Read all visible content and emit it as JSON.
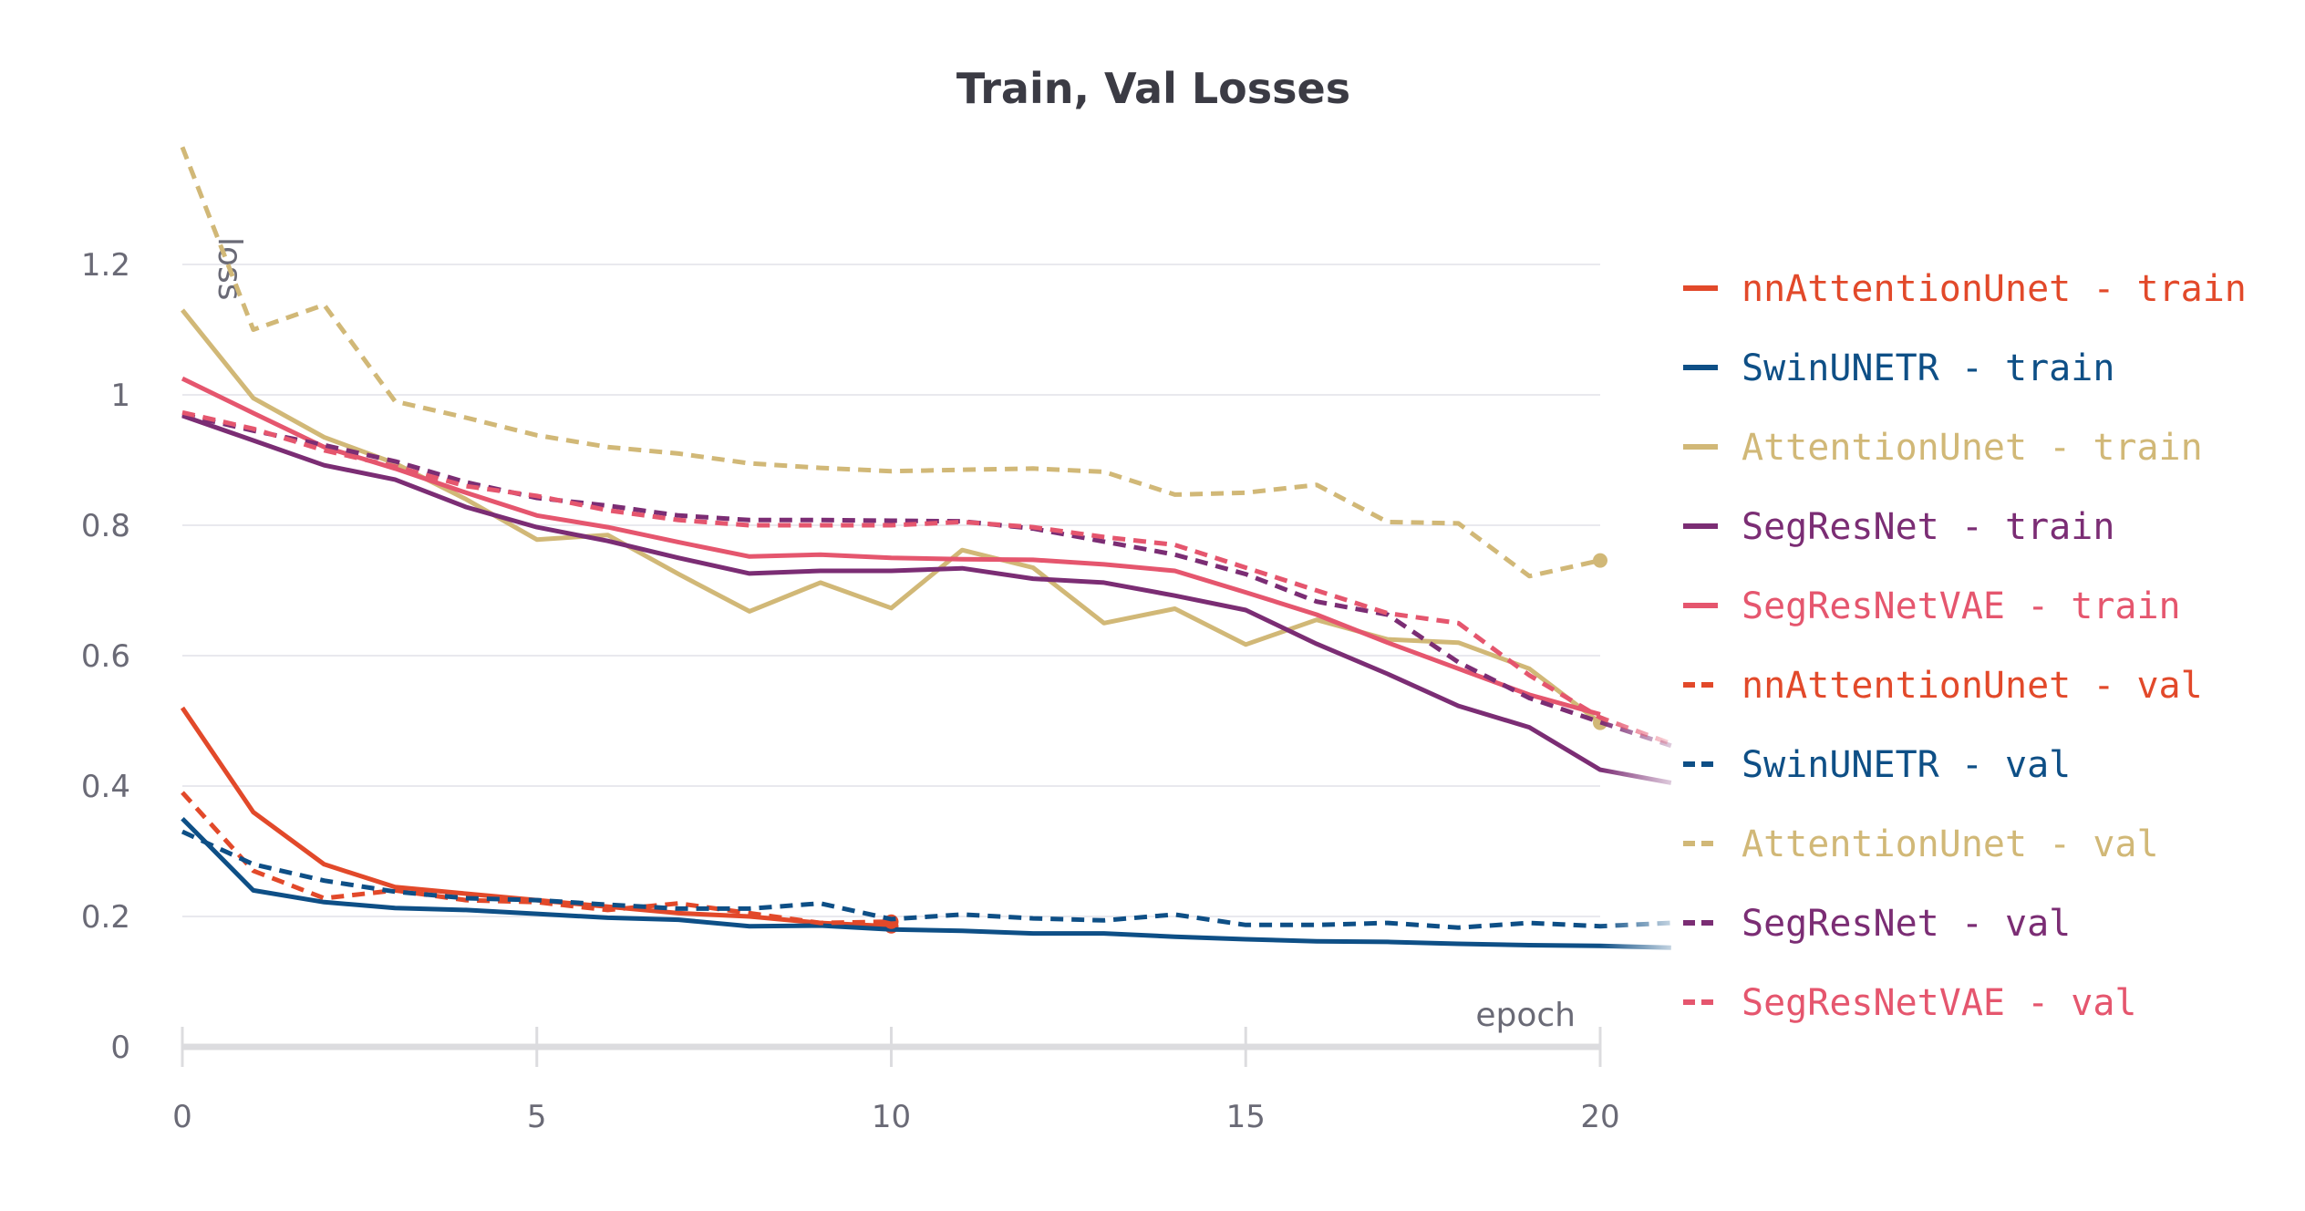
{
  "chart_data": {
    "type": "line",
    "title": "Train, Val Losses",
    "xlabel": "epoch",
    "ylabel": "loss",
    "xlim": [
      0,
      21
    ],
    "ylim": [
      0,
      1.38
    ],
    "xticks": [
      "0",
      "5",
      "10",
      "15",
      "20"
    ],
    "yticks": [
      "0",
      "0.2",
      "0.4",
      "0.6",
      "0.8",
      "1",
      "1.2"
    ],
    "grid": true,
    "legend_position": "right",
    "series": [
      {
        "name": "nnAttentionUnet - train",
        "color": "#e2492a",
        "dash": false,
        "x": [
          0,
          1,
          2,
          3,
          4,
          5,
          6,
          7,
          8,
          9,
          10
        ],
        "values": [
          0.52,
          0.36,
          0.28,
          0.245,
          0.235,
          0.225,
          0.215,
          0.205,
          0.2,
          0.19,
          0.185
        ],
        "end_marker": true
      },
      {
        "name": "SwinUNETR - train",
        "color": "#0e4f86",
        "dash": false,
        "x": [
          0,
          1,
          2,
          3,
          4,
          5,
          6,
          7,
          8,
          9,
          10,
          11,
          12,
          13,
          14,
          15,
          16,
          17,
          18,
          19,
          20,
          21
        ],
        "values": [
          0.35,
          0.24,
          0.222,
          0.213,
          0.21,
          0.204,
          0.198,
          0.195,
          0.185,
          0.186,
          0.18,
          0.178,
          0.174,
          0.174,
          0.169,
          0.165,
          0.162,
          0.161,
          0.158,
          0.156,
          0.155,
          0.152
        ],
        "end_marker": false
      },
      {
        "name": "AttentionUnet - train",
        "color": "#d1b877",
        "dash": false,
        "x": [
          0,
          1,
          2,
          3,
          4,
          5,
          6,
          7,
          8,
          9,
          10,
          11,
          12,
          13,
          14,
          15,
          16,
          17,
          18,
          19,
          20
        ],
        "values": [
          1.13,
          0.995,
          0.935,
          0.895,
          0.84,
          0.778,
          0.785,
          0.725,
          0.668,
          0.712,
          0.673,
          0.762,
          0.735,
          0.65,
          0.672,
          0.617,
          0.655,
          0.625,
          0.62,
          0.58,
          0.497
        ],
        "end_marker": true
      },
      {
        "name": "SegResNet - train",
        "color": "#7b2d74",
        "dash": false,
        "x": [
          0,
          1,
          2,
          3,
          4,
          5,
          6,
          7,
          8,
          9,
          10,
          11,
          12,
          13,
          14,
          15,
          16,
          17,
          18,
          19,
          20,
          21
        ],
        "values": [
          0.968,
          0.93,
          0.892,
          0.87,
          0.828,
          0.797,
          0.776,
          0.75,
          0.726,
          0.73,
          0.73,
          0.734,
          0.718,
          0.712,
          0.692,
          0.67,
          0.618,
          0.572,
          0.523,
          0.49,
          0.425,
          0.405
        ],
        "end_marker": false
      },
      {
        "name": "SegResNetVAE - train",
        "color": "#e5566e",
        "dash": false,
        "x": [
          0,
          1,
          2,
          3,
          4,
          5,
          6,
          7,
          8,
          9,
          10,
          11,
          12,
          13,
          14,
          15,
          16,
          17,
          18,
          19,
          20
        ],
        "values": [
          1.025,
          0.972,
          0.92,
          0.887,
          0.85,
          0.815,
          0.797,
          0.774,
          0.752,
          0.755,
          0.75,
          0.748,
          0.747,
          0.74,
          0.73,
          0.697,
          0.663,
          0.62,
          0.58,
          0.54,
          0.51
        ],
        "end_marker": false
      },
      {
        "name": "nnAttentionUnet - val",
        "color": "#e2492a",
        "dash": true,
        "x": [
          0,
          1,
          2,
          3,
          4,
          5,
          6,
          7,
          8,
          9,
          10
        ],
        "values": [
          0.39,
          0.27,
          0.228,
          0.24,
          0.225,
          0.222,
          0.21,
          0.22,
          0.205,
          0.19,
          0.192
        ],
        "end_marker": true
      },
      {
        "name": "SwinUNETR - val",
        "color": "#0e4f86",
        "dash": true,
        "x": [
          0,
          1,
          2,
          3,
          4,
          5,
          6,
          7,
          8,
          9,
          10,
          11,
          12,
          13,
          14,
          15,
          16,
          17,
          18,
          19,
          20,
          21
        ],
        "values": [
          0.33,
          0.28,
          0.255,
          0.238,
          0.228,
          0.225,
          0.218,
          0.212,
          0.212,
          0.22,
          0.196,
          0.203,
          0.197,
          0.194,
          0.203,
          0.187,
          0.187,
          0.19,
          0.183,
          0.19,
          0.185,
          0.19
        ],
        "end_marker": false
      },
      {
        "name": "AttentionUnet - val",
        "color": "#d1b877",
        "dash": true,
        "x": [
          0,
          1,
          2,
          3,
          4,
          5,
          6,
          7,
          8,
          9,
          10,
          11,
          12,
          13,
          14,
          15,
          16,
          17,
          18,
          19,
          20
        ],
        "values": [
          1.38,
          1.1,
          1.138,
          0.99,
          0.965,
          0.938,
          0.92,
          0.91,
          0.895,
          0.888,
          0.883,
          0.885,
          0.887,
          0.882,
          0.847,
          0.85,
          0.862,
          0.805,
          0.803,
          0.722,
          0.746
        ],
        "end_marker": true
      },
      {
        "name": "SegResNet - val",
        "color": "#7b2d74",
        "dash": true,
        "x": [
          0,
          1,
          2,
          3,
          4,
          5,
          6,
          7,
          8,
          9,
          10,
          11,
          12,
          13,
          14,
          15,
          16,
          17,
          18,
          19,
          20,
          21
        ],
        "values": [
          0.97,
          0.945,
          0.923,
          0.898,
          0.866,
          0.842,
          0.83,
          0.815,
          0.808,
          0.808,
          0.807,
          0.806,
          0.795,
          0.775,
          0.755,
          0.725,
          0.683,
          0.663,
          0.59,
          0.535,
          0.498,
          0.462
        ],
        "end_marker": false
      },
      {
        "name": "SegResNetVAE - val",
        "color": "#e5566e",
        "dash": true,
        "x": [
          0,
          1,
          2,
          3,
          4,
          5,
          6,
          7,
          8,
          9,
          10,
          11,
          12,
          13,
          14,
          15,
          16,
          17,
          18,
          19,
          20,
          21
        ],
        "values": [
          0.973,
          0.948,
          0.915,
          0.89,
          0.86,
          0.845,
          0.823,
          0.808,
          0.8,
          0.8,
          0.8,
          0.805,
          0.797,
          0.782,
          0.77,
          0.735,
          0.7,
          0.665,
          0.65,
          0.57,
          0.505,
          0.465
        ],
        "end_marker": false
      }
    ]
  }
}
